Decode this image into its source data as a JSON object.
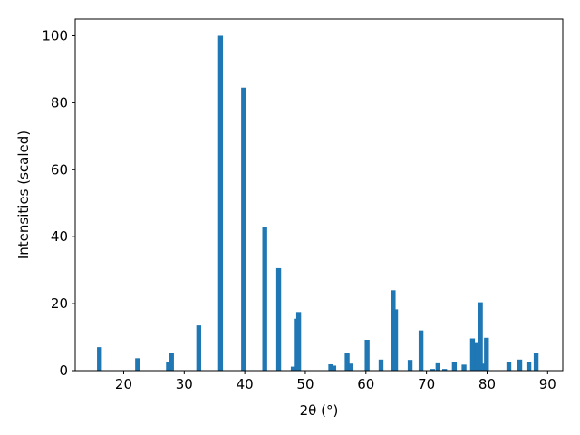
{
  "chart_data": {
    "type": "bar",
    "xlabel": "2θ (°)",
    "ylabel": "Intensities (scaled)",
    "xlim": [
      12,
      92.5
    ],
    "ylim": [
      0,
      105
    ],
    "xticks": [
      20,
      30,
      40,
      50,
      60,
      70,
      80,
      90
    ],
    "yticks": [
      0,
      20,
      40,
      60,
      80,
      100
    ],
    "bar_color": "#1f77b4",
    "bar_width": 0.8,
    "x": [
      16.0,
      22.3,
      27.4,
      27.9,
      32.4,
      36.0,
      39.8,
      43.3,
      45.6,
      48.0,
      48.5,
      48.9,
      54.2,
      54.7,
      56.9,
      57.5,
      60.2,
      62.5,
      64.5,
      64.9,
      67.3,
      69.1,
      71.0,
      71.9,
      73.0,
      74.6,
      76.2,
      77.6,
      78.3,
      78.9,
      79.4,
      79.9,
      83.6,
      85.4,
      86.9,
      88.1
    ],
    "values": [
      7,
      3.7,
      2.6,
      5.4,
      13.5,
      100,
      84.5,
      43,
      30.6,
      1.2,
      15.5,
      17.5,
      1.9,
      1.5,
      5.2,
      2.1,
      9.2,
      3.3,
      24,
      18.3,
      3.2,
      12,
      0.5,
      2.2,
      0.5,
      2.7,
      1.8,
      9.6,
      8.5,
      20.4,
      2.1,
      9.8,
      2.6,
      3.3,
      2.6,
      5.2
    ]
  }
}
